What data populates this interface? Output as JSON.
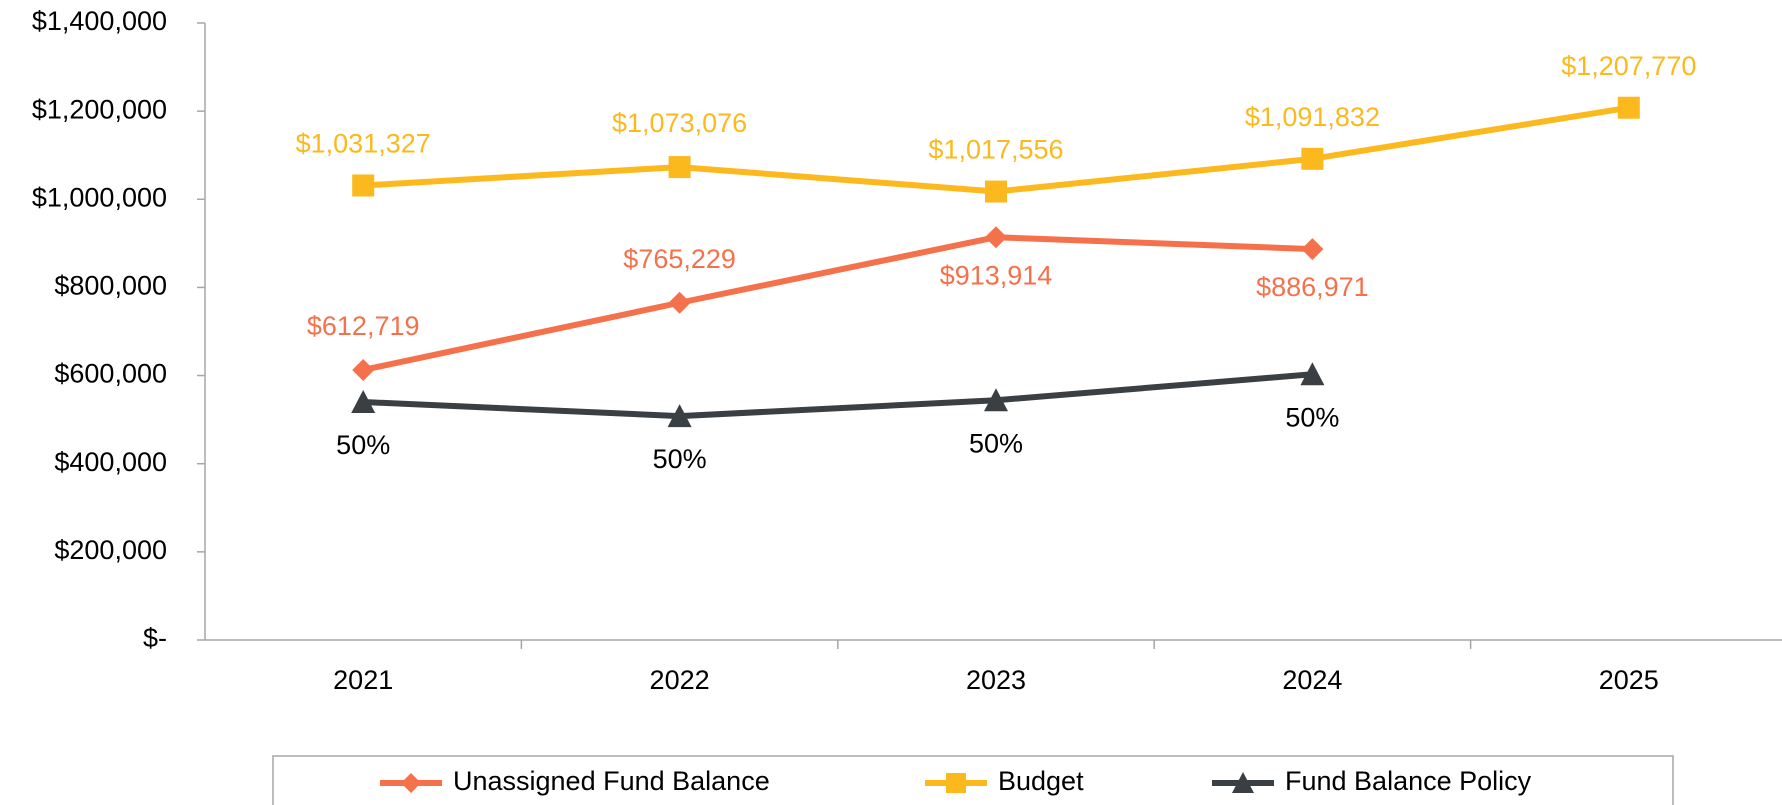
{
  "chart_data": {
    "type": "line",
    "categories": [
      "2021",
      "2022",
      "2023",
      "2024",
      "2025"
    ],
    "series": [
      {
        "name": "Unassigned Fund Balance",
        "color": "#f4714b",
        "marker": "diamond",
        "values": [
          612719,
          765229,
          913914,
          886971,
          null
        ],
        "value_labels": [
          "$612,719",
          "$765,229",
          "$913,914",
          "$886,971",
          null
        ]
      },
      {
        "name": "Budget",
        "color": "#fbb91e",
        "marker": "square",
        "values": [
          1031327,
          1073076,
          1017556,
          1091832,
          1207770
        ],
        "value_labels": [
          "$1,031,327",
          "$1,073,076",
          "$1,017,556",
          "$1,091,832",
          "$1,207,770"
        ]
      },
      {
        "name": "Fund Balance Policy",
        "color": "#3a3f44",
        "marker": "triangle",
        "values": [
          540000,
          508000,
          544000,
          603000,
          null
        ],
        "annotations": [
          "50%",
          "50%",
          "50%",
          "50%",
          null
        ]
      }
    ],
    "ylim": [
      0,
      1400000
    ],
    "yticks": [
      {
        "value": 0,
        "label": "$-"
      },
      {
        "value": 200000,
        "label": "$200,000"
      },
      {
        "value": 400000,
        "label": "$400,000"
      },
      {
        "value": 600000,
        "label": "$600,000"
      },
      {
        "value": 800000,
        "label": "$800,000"
      },
      {
        "value": 1000000,
        "label": "$1,000,000"
      },
      {
        "value": 1200000,
        "label": "$1,200,000"
      },
      {
        "value": 1400000,
        "label": "$1,400,000"
      }
    ],
    "grid": false,
    "legend": "bottom"
  }
}
